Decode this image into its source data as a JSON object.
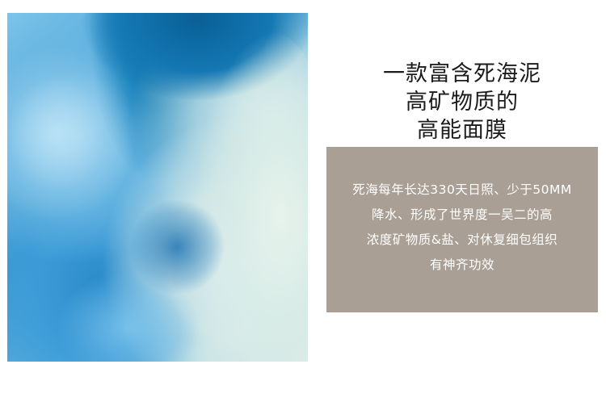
{
  "headline": {
    "lines": [
      "一款富含死海泥",
      "高矿物质的",
      "高能面膜"
    ]
  },
  "info": {
    "lines": [
      "死海每年长达330天日照、少于50MM",
      "降水、形成了世界度一吴二的高",
      "浓度矿物质&盐、对休复细包组织",
      "有神齐功效"
    ]
  },
  "colors": {
    "info_box_background": "#a99f94",
    "headline_text": "#1b1b1b",
    "info_text": "#ffffff"
  }
}
